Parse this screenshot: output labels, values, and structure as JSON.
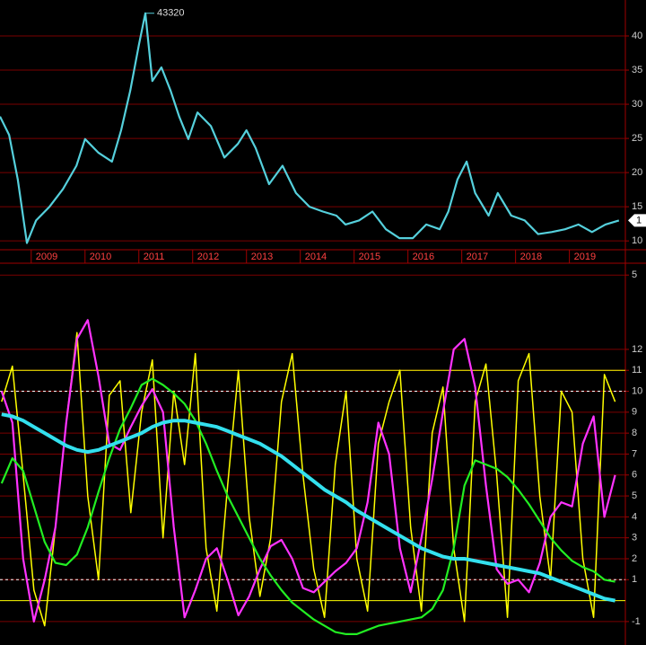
{
  "chart_data": [
    {
      "type": "line",
      "x": [
        2008.42,
        2008.59,
        2008.75,
        2008.92,
        2009.09,
        2009.34,
        2009.59,
        2009.84,
        2010.0,
        2010.25,
        2010.5,
        2010.67,
        2010.84,
        2011.0,
        2011.12,
        2011.25,
        2011.42,
        2011.59,
        2011.75,
        2011.92,
        2012.09,
        2012.34,
        2012.59,
        2012.84,
        2013.0,
        2013.17,
        2013.42,
        2013.67,
        2013.92,
        2014.17,
        2014.42,
        2014.67,
        2014.84,
        2015.09,
        2015.34,
        2015.59,
        2015.84,
        2016.09,
        2016.34,
        2016.59,
        2016.75,
        2016.92,
        2017.09,
        2017.25,
        2017.5,
        2017.67,
        2017.92,
        2018.17,
        2018.42,
        2018.67,
        2018.92,
        2019.17,
        2019.42,
        2019.67,
        2019.92
      ],
      "series": [
        {
          "color": "#55d0dc",
          "values": [
            28.2,
            25.5,
            19,
            9.7,
            13,
            15,
            17.6,
            21,
            24.9,
            22.9,
            21.6,
            26.2,
            32,
            38.7,
            43.32,
            33.4,
            35.4,
            32,
            28.2,
            24.9,
            28.8,
            26.8,
            22.2,
            24.2,
            26.2,
            23.6,
            18.3,
            21,
            17,
            15,
            14.3,
            13.7,
            12.4,
            13,
            14.3,
            11.7,
            10.4,
            10.4,
            12.4,
            11.7,
            14.3,
            19,
            21.6,
            17,
            13.7,
            17,
            13.7,
            13,
            11,
            11.3,
            11.7,
            12.4,
            11.3,
            12.4,
            13
          ]
        }
      ],
      "xlim": [
        2008.42,
        2020.04
      ],
      "xticks": [
        2009,
        2010,
        2011,
        2012,
        2013,
        2014,
        2015,
        2016,
        2017,
        2018,
        2019
      ],
      "ylim": [
        4.5,
        45.26
      ],
      "yticks": [
        40,
        35,
        30,
        25,
        20,
        15,
        10,
        5
      ],
      "grid": true,
      "grid_color": "#7a0000",
      "annotations": [
        {
          "text": "43320"
        },
        {
          "text": "1"
        }
      ]
    },
    {
      "type": "line",
      "x": [
        2008.45,
        2008.65,
        2008.85,
        2009.05,
        2009.25,
        2009.45,
        2009.65,
        2009.85,
        2010.05,
        2010.25,
        2010.45,
        2010.65,
        2010.85,
        2011.05,
        2011.25,
        2011.45,
        2011.65,
        2011.85,
        2012.05,
        2012.25,
        2012.45,
        2012.65,
        2012.85,
        2013.05,
        2013.25,
        2013.45,
        2013.65,
        2013.85,
        2014.05,
        2014.25,
        2014.45,
        2014.65,
        2014.85,
        2015.05,
        2015.25,
        2015.45,
        2015.65,
        2015.85,
        2016.05,
        2016.25,
        2016.45,
        2016.65,
        2016.85,
        2017.05,
        2017.25,
        2017.45,
        2017.65,
        2017.85,
        2018.05,
        2018.25,
        2018.45,
        2018.65,
        2018.85,
        2019.05,
        2019.25,
        2019.45,
        2019.65,
        2019.85
      ],
      "series": [
        {
          "color": "#ffff00",
          "values": [
            9.5,
            11.2,
            6.0,
            0.5,
            -1.2,
            3.5,
            8.5,
            12.8,
            5.0,
            1.0,
            9.8,
            10.5,
            4.2,
            9.0,
            11.5,
            3.0,
            10.0,
            6.5,
            11.8,
            2.5,
            -0.5,
            5.5,
            11.0,
            4.0,
            0.2,
            3.0,
            9.5,
            11.8,
            6.0,
            1.5,
            -0.8,
            6.5,
            10.0,
            2.0,
            -0.5,
            7.5,
            9.5,
            11.0,
            3.5,
            -0.5,
            8.0,
            10.2,
            2.5,
            -1.0,
            9.5,
            11.3,
            6.0,
            -0.8,
            10.5,
            11.8,
            5.0,
            1.0,
            10.0,
            9.0,
            2.0,
            -0.8,
            10.8,
            9.5
          ]
        },
        {
          "color": "#ff33ff",
          "values": [
            10.0,
            8.5,
            2.0,
            -1.0,
            1.0,
            3.5,
            8.5,
            12.5,
            13.4,
            10.7,
            7.5,
            7.2,
            8.3,
            9.3,
            10.1,
            9.0,
            3.5,
            -0.8,
            0.5,
            2.0,
            2.5,
            1.0,
            -0.7,
            0.2,
            1.5,
            2.6,
            2.9,
            2.0,
            0.6,
            0.4,
            0.9,
            1.4,
            1.8,
            2.5,
            4.7,
            8.5,
            7.0,
            2.5,
            0.4,
            3.0,
            5.8,
            9.0,
            12.0,
            12.5,
            10.2,
            5.5,
            1.5,
            0.8,
            1.0,
            0.4,
            1.8,
            4.0,
            4.7,
            4.5,
            7.5,
            8.8,
            4.0,
            6.0
          ]
        },
        {
          "color": "#22ee22",
          "values": [
            5.6,
            6.8,
            6.2,
            4.5,
            2.8,
            1.8,
            1.7,
            2.2,
            3.5,
            5.2,
            6.8,
            8.2,
            9.2,
            10.3,
            10.6,
            10.3,
            9.9,
            9.4,
            8.6,
            7.5,
            6.2,
            5.0,
            4.0,
            3.0,
            2.0,
            1.2,
            0.5,
            -0.1,
            -0.5,
            -0.9,
            -1.2,
            -1.5,
            -1.6,
            -1.6,
            -1.4,
            -1.2,
            -1.1,
            -1.0,
            -0.9,
            -0.8,
            -0.4,
            0.5,
            2.5,
            5.5,
            6.7,
            6.5,
            6.3,
            5.9,
            5.3,
            4.6,
            3.8,
            3.0,
            2.4,
            1.9,
            1.6,
            1.4,
            1.0,
            0.9
          ]
        },
        {
          "color": "#33e0ee",
          "values": [
            8.9,
            8.8,
            8.6,
            8.3,
            8.0,
            7.7,
            7.4,
            7.2,
            7.1,
            7.2,
            7.4,
            7.6,
            7.8,
            8.0,
            8.3,
            8.5,
            8.6,
            8.6,
            8.5,
            8.4,
            8.3,
            8.1,
            7.9,
            7.7,
            7.5,
            7.2,
            6.9,
            6.5,
            6.1,
            5.7,
            5.3,
            5.0,
            4.7,
            4.3,
            4.0,
            3.7,
            3.4,
            3.1,
            2.8,
            2.5,
            2.3,
            2.1,
            2.0,
            2.0,
            1.9,
            1.8,
            1.7,
            1.6,
            1.5,
            1.4,
            1.3,
            1.1,
            0.9,
            0.7,
            0.5,
            0.3,
            0.1,
            0.0
          ]
        }
      ],
      "xlim": [
        2008.42,
        2020.04
      ],
      "ylim": [
        -2.12,
        16.03
      ],
      "yticks": [
        12,
        11,
        10,
        9,
        8,
        7,
        6,
        5,
        4,
        3,
        2,
        1,
        -1
      ],
      "grid": true,
      "grid_color": "#7a0000",
      "reference_lines": [
        {
          "value": 11,
          "color": "#ffff00",
          "style": "solid"
        },
        {
          "value": 0,
          "color": "#ffff00",
          "style": "solid"
        },
        {
          "value": 10,
          "color": "#ffffff",
          "style": "dashed"
        },
        {
          "value": 1,
          "color": "#ffffff",
          "style": "dashed"
        }
      ]
    }
  ]
}
